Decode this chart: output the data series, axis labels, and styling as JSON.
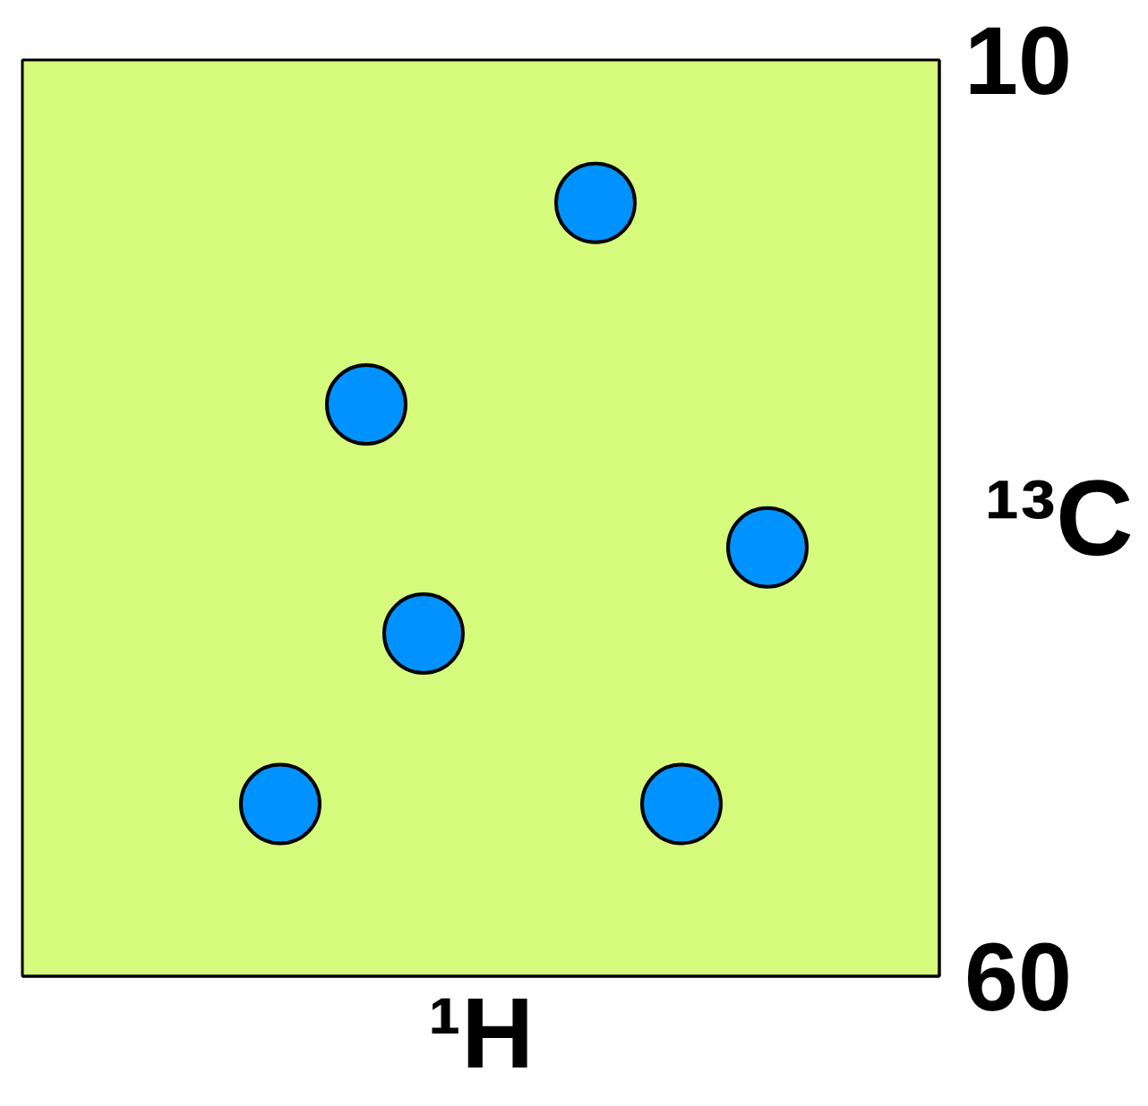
{
  "chart_data": {
    "type": "scatter",
    "xlabel": "¹H",
    "ylabel": "¹³C",
    "categories": [
      null,
      null,
      null,
      null,
      null,
      null,
      null,
      null,
      null,
      null,
      null,
      null,
      null,
      null,
      null,
      null,
      null,
      null,
      null,
      null,
      null,
      null,
      null,
      null,
      null,
      null,
      null,
      null,
      null,
      null,
      null
    ],
    "series": [
      {
        "color": "#0093ff",
        "values": [
          null,
          null,
          null,
          null,
          null,
          null,
          null,
          null,
          50.6,
          null,
          null,
          28.8,
          null,
          41.3,
          null,
          null,
          null,
          null,
          null,
          17.8,
          null,
          null,
          50.6,
          null,
          null,
          36.6,
          null,
          null,
          null,
          null,
          null
        ]
      }
    ],
    "ylim": [
      60,
      10
    ],
    "yticks": [
      10,
      60
    ],
    "tick_labels": "y",
    "marker": "circle"
  }
}
